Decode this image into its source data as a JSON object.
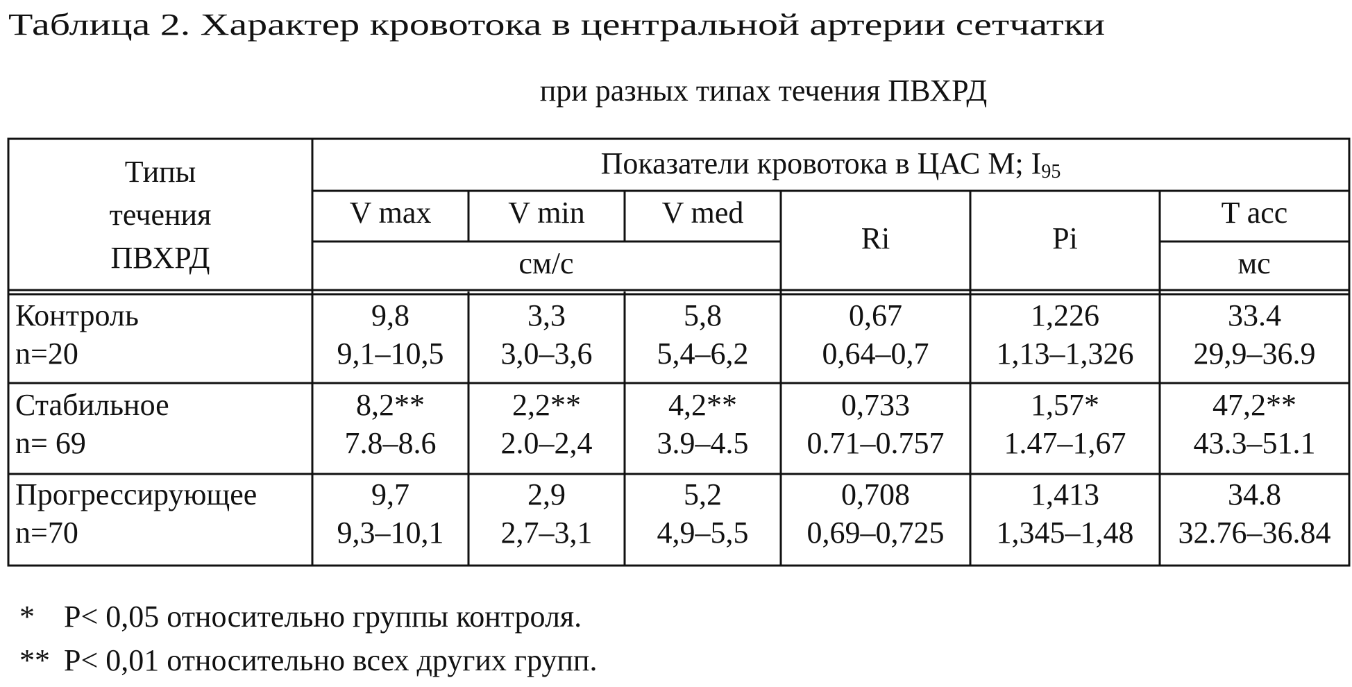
{
  "header": {
    "title": "Таблица 2. Характер кровотока в центральной артерии сетчатки",
    "subtitle": "при разных типах течения ПВХРД"
  },
  "table": {
    "group_header": [
      "Типы",
      "течения",
      "ПВХРД"
    ],
    "span_header": {
      "text": "Показатели кровотока в ЦАС М; I",
      "sub": "95"
    },
    "columns": [
      "V max",
      "V min",
      "V med",
      "Ri",
      "Pi",
      "T acc"
    ],
    "units": {
      "speed": "см/с",
      "time": "мс"
    },
    "rows": [
      {
        "group": "Контроль",
        "n": "n=20",
        "cells": [
          [
            "9,8",
            "9,1–10,5"
          ],
          [
            "3,3",
            "3,0–3,6"
          ],
          [
            "5,8",
            "5,4–6,2"
          ],
          [
            "0,67",
            "0,64–0,7"
          ],
          [
            "1,226",
            "1,13–1,326"
          ],
          [
            "33.4",
            "29,9–36.9"
          ]
        ]
      },
      {
        "group": "Стабильное",
        "n": "n= 69",
        "cells": [
          [
            "8,2**",
            "7.8–8.6"
          ],
          [
            "2,2**",
            "2.0–2,4"
          ],
          [
            "4,2**",
            "3.9–4.5"
          ],
          [
            "0,733",
            "0.71–0.757"
          ],
          [
            "1,57*",
            "1.47–1,67"
          ],
          [
            "47,2**",
            "43.3–51.1"
          ]
        ]
      },
      {
        "group": "Прогрессирующее",
        "n": "n=70",
        "cells": [
          [
            "9,7",
            "9,3–10,1"
          ],
          [
            "2,9",
            "2,7–3,1"
          ],
          [
            "5,2",
            "4,9–5,5"
          ],
          [
            "0,708",
            "0,69–0,725"
          ],
          [
            "1,413",
            "1,345–1,48"
          ],
          [
            "34.8",
            "32.76–36.84"
          ]
        ]
      }
    ]
  },
  "footnotes": [
    {
      "mark": "*",
      "text": "P< 0,05 относительно группы контроля."
    },
    {
      "mark": "**",
      "text": "P< 0,01 относительно всех других групп."
    }
  ]
}
